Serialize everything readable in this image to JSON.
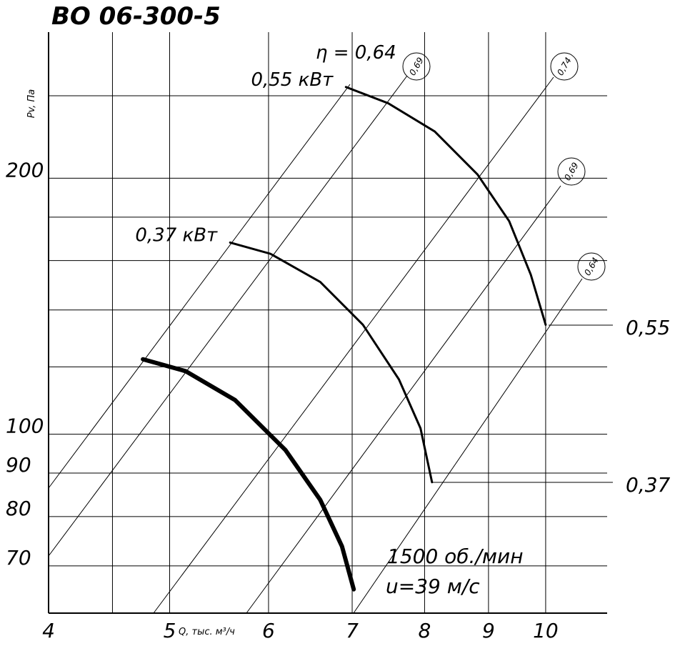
{
  "chart_data": {
    "type": "line",
    "title": "ВО 06-300-5",
    "x_label": "Q, тыс. м³/ч",
    "y_label": "Pv, Па",
    "log_x": true,
    "log_y": true,
    "xlim": [
      4,
      11.2
    ],
    "ylim": [
      61.6,
      297
    ],
    "xticks": [
      4,
      5,
      6,
      7,
      8,
      9,
      10
    ],
    "yticks": [
      70,
      80,
      90,
      100,
      200
    ],
    "minor_xticks": [
      4.5
    ],
    "minor_yticks": [
      120,
      140,
      160,
      180,
      250
    ],
    "grid": true,
    "series": [
      {
        "name": "0,55 кВт",
        "color": "#000000",
        "width": 3,
        "x": [
          6.92,
          7.48,
          8.15,
          8.82,
          9.35,
          9.73,
          10.0
        ],
        "values": [
          256,
          245,
          227,
          202,
          178,
          154,
          134.5
        ]
      },
      {
        "name": "0,37 кВт",
        "color": "#000000",
        "width": 3,
        "x": [
          5.59,
          6.02,
          6.6,
          7.14,
          7.63,
          7.94,
          8.11
        ],
        "values": [
          168,
          163,
          151,
          134.5,
          116,
          101.6,
          87.8
        ]
      },
      {
        "color": "#000000",
        "width": 6,
        "x": [
          4.76,
          5.15,
          5.64,
          6.19,
          6.6,
          6.87,
          7.02
        ],
        "values": [
          122.5,
          118.6,
          109.7,
          95.8,
          83.7,
          73.8,
          65.7
        ]
      }
    ],
    "annotations": {
      "eta": "η = 0,64",
      "eff1": "0,69",
      "eff2": "0,74",
      "eff3": "0,69",
      "eff4": "0,64",
      "power_055": "0,55",
      "power_037": "0,37",
      "speed": "1500 об./мин",
      "tip_speed": "u=39 м/с"
    }
  }
}
